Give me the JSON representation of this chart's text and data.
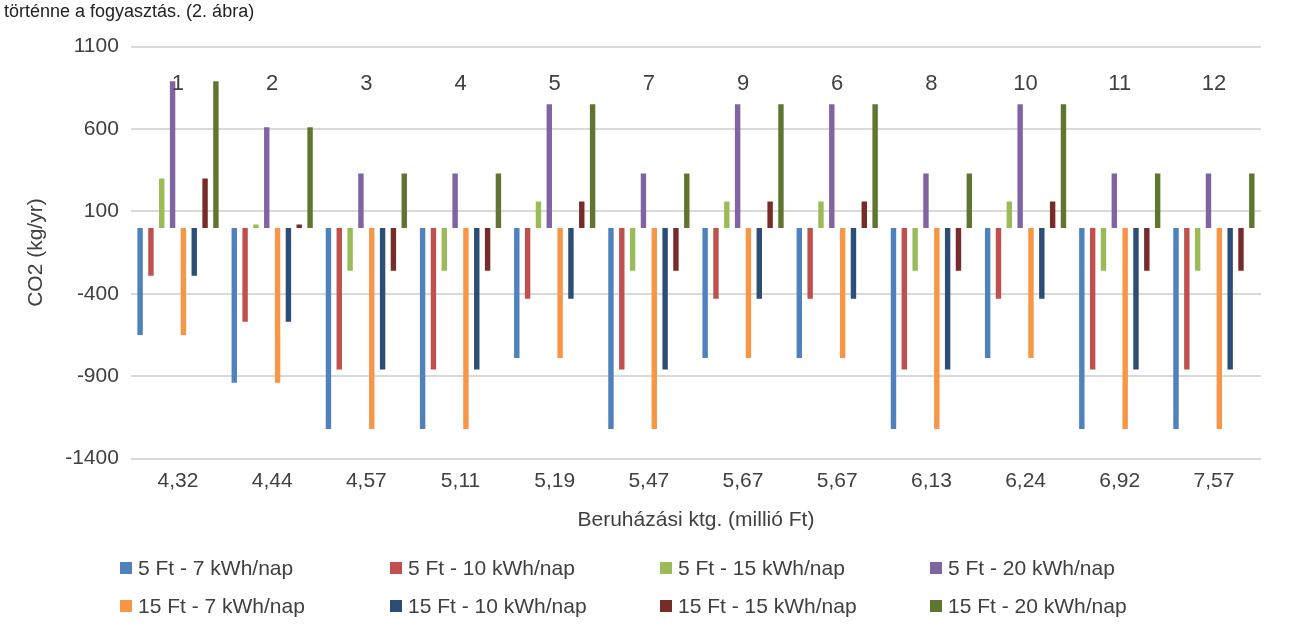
{
  "chart_data": {
    "type": "bar",
    "xlabel": "Beruházási ktg. (millió Ft)",
    "ylabel": "CO2 (kg/yr)",
    "categories": [
      "4,32",
      "4,44",
      "4,57",
      "5,11",
      "5,19",
      "5,47",
      "5,67",
      "5,67",
      "6,13",
      "6,24",
      "6,92",
      "7,57"
    ],
    "series": [
      {
        "name": "5 Ft - 7 kWh/nap",
        "color": "#4f81bd",
        "values": [
          -650,
          -940,
          -1220,
          -1220,
          -790,
          -1220,
          -790,
          -790,
          -1220,
          -790,
          -1220,
          -1220
        ]
      },
      {
        "name": "5 Ft - 10 kWh/nap",
        "color": "#c0504d",
        "values": [
          -290,
          -570,
          -860,
          -860,
          -430,
          -860,
          -430,
          -430,
          -860,
          -430,
          -860,
          -860
        ]
      },
      {
        "name": "5 Ft - 15 kWh/nap",
        "color": "#9bbb59",
        "values": [
          300,
          20,
          -260,
          -260,
          160,
          -260,
          160,
          160,
          -260,
          160,
          -260,
          -260
        ]
      },
      {
        "name": "5 Ft - 20 kWh/nap",
        "color": "#8064a2",
        "values": [
          890,
          610,
          330,
          330,
          750,
          330,
          750,
          750,
          330,
          750,
          330,
          330
        ]
      },
      {
        "name": "15 Ft - 7 kWh/nap",
        "color": "#f79646",
        "values": [
          -650,
          -940,
          -1220,
          -1220,
          -790,
          -1220,
          -790,
          -790,
          -1220,
          -790,
          -1220,
          -1220
        ]
      },
      {
        "name": "15 Ft - 10 kWh/nap",
        "color": "#2c4d75",
        "values": [
          -290,
          -570,
          -860,
          -860,
          -430,
          -860,
          -430,
          -430,
          -860,
          -430,
          -860,
          -860
        ]
      },
      {
        "name": "15 Ft - 15 kWh/nap",
        "color": "#772c2a",
        "values": [
          300,
          20,
          -260,
          -260,
          160,
          -260,
          160,
          160,
          -260,
          160,
          -260,
          -260
        ]
      },
      {
        "name": "15 Ft - 20 kWh/nap",
        "color": "#5f7530",
        "values": [
          890,
          610,
          330,
          330,
          750,
          330,
          750,
          750,
          330,
          750,
          330,
          330
        ]
      }
    ],
    "ylim": [
      -1400,
      1100
    ],
    "yticks": [
      1100,
      600,
      100,
      -400,
      -900,
      -1400
    ],
    "grid": "y",
    "legend": "bottom",
    "annotations": [
      "történne a fogyasztás. (2. ábra)",
      "1",
      "2",
      "3",
      "4",
      "5",
      "7",
      "9",
      "6",
      "8",
      "10",
      "11",
      "12"
    ]
  }
}
